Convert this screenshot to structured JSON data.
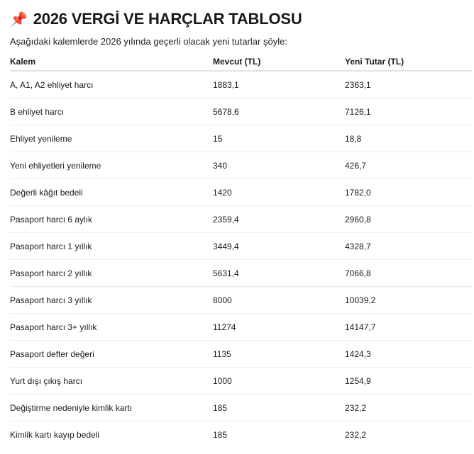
{
  "title": "2026 VERGİ VE HARÇLAR TABLOSU",
  "title_icon": "pushpin-icon",
  "intro": "Aşağıdaki kalemlerde 2026 yılında geçerli olacak yeni tutarlar şöyle:",
  "table": {
    "headers": [
      "Kalem",
      "Mevcut (TL)",
      "Yeni Tutar (TL)"
    ],
    "rows": [
      [
        "A, A1, A2 ehliyet harcı",
        "1883,1",
        "2363,1"
      ],
      [
        "B ehliyet harcı",
        "5678,6",
        "7126,1"
      ],
      [
        "Ehliyet yenileme",
        "15",
        "18,8"
      ],
      [
        "Yeni ehliyetleri yenileme",
        "340",
        "426,7"
      ],
      [
        "Değerli kâğıt bedeli",
        "1420",
        "1782,0"
      ],
      [
        "Pasaport harcı 6 aylık",
        "2359,4",
        "2960,8"
      ],
      [
        "Pasaport harcı 1 yıllık",
        "3449,4",
        "4328,7"
      ],
      [
        "Pasaport harcı 2 yıllık",
        "5631,4",
        "7066,8"
      ],
      [
        "Pasaport harcı 3 yıllık",
        "8000",
        "10039,2"
      ],
      [
        "Pasaport harcı 3+ yıllık",
        "11274",
        "14147,7"
      ],
      [
        "Pasaport defter değeri",
        "1135",
        "1424,3"
      ],
      [
        "Yurt dışı çıkış harcı",
        "1000",
        "1254,9"
      ],
      [
        "Değiştirme nedeniyle kimlik kartı",
        "185",
        "232,2"
      ],
      [
        "Kimlik kartı kayıp bedeli",
        "185",
        "232,2"
      ]
    ]
  }
}
